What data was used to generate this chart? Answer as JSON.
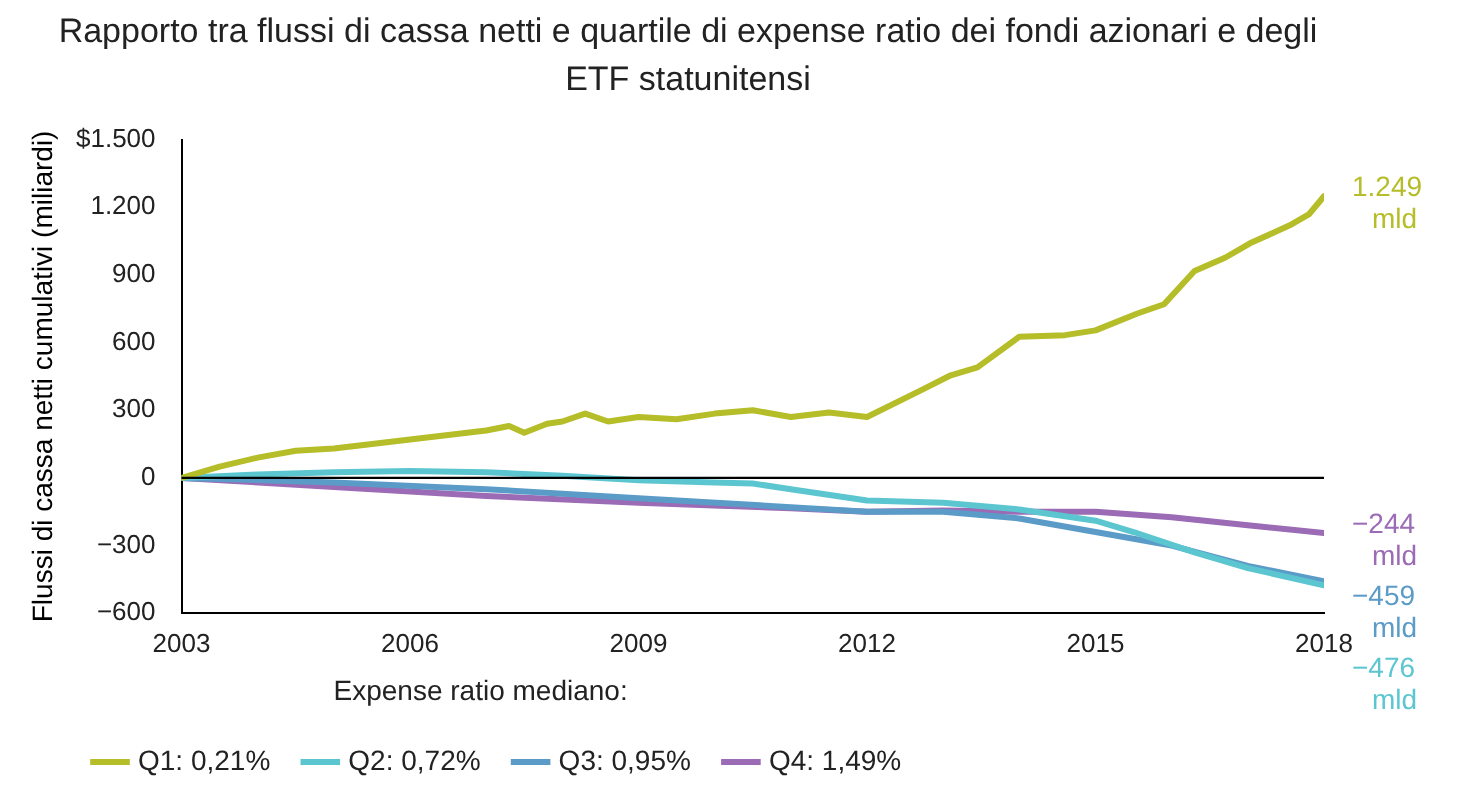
{
  "chart_data": {
    "type": "line",
    "title": "Rapporto tra flussi di cassa netti e quartile di expense ratio dei fondi azionari e degli ETF statunitensi",
    "ylabel": "Flussi di cassa netti cumulativi (miliardi)",
    "legend_title": "Expense ratio mediano:",
    "legend": "bottom",
    "grid": false,
    "marker": "none",
    "line_style": "solid",
    "xlim": [
      2003,
      2018
    ],
    "xticks": [
      2003,
      2006,
      2009,
      2012,
      2015,
      2018
    ],
    "ylim": [
      -600,
      1500
    ],
    "yticks": [
      {
        "value": -600,
        "label": "−600"
      },
      {
        "value": -300,
        "label": "−300"
      },
      0,
      300,
      600,
      900,
      {
        "value": 1200,
        "label": "1.200"
      },
      {
        "value": 1500,
        "label": "$1.500"
      }
    ],
    "ref_lines": [
      {
        "axis": "y",
        "value": 0,
        "color": "#000000"
      }
    ],
    "series": [
      {
        "name": "Q1: 0,21%",
        "color": "#b5bd28",
        "x": [
          2003,
          2003.5,
          2004,
          2004.5,
          2005,
          2005.5,
          2006,
          2006.5,
          2007,
          2007.3,
          2007.5,
          2007.8,
          2008,
          2008.3,
          2008.6,
          2009,
          2009.5,
          2010,
          2010.5,
          2011,
          2011.5,
          2012,
          2012.7,
          2013.1,
          2013.45,
          2014,
          2014.6,
          2015,
          2015.55,
          2015.9,
          2016.3,
          2016.7,
          2017.05,
          2017.35,
          2017.55,
          2017.8,
          2018
        ],
        "values": [
          0,
          50,
          90,
          120,
          130,
          150,
          170,
          190,
          210,
          230,
          200,
          240,
          250,
          285,
          250,
          270,
          260,
          285,
          300,
          270,
          290,
          270,
          387,
          455,
          490,
          626,
          633,
          654,
          729,
          770,
          917,
          976,
          1044,
          1089,
          1120,
          1168,
          1249
        ],
        "value_labels": [
          null,
          null,
          null,
          null,
          null,
          null,
          null,
          null,
          null,
          null,
          null,
          null,
          null,
          null,
          null,
          null,
          null,
          null,
          null,
          null,
          null,
          null,
          null,
          null,
          null,
          null,
          null,
          null,
          null,
          null,
          null,
          null,
          null,
          null,
          null,
          null,
          "1.249 mld"
        ]
      },
      {
        "name": "Q2: 0,72%",
        "color": "#5cc6d0",
        "x": [
          2003,
          2004,
          2005,
          2006,
          2007,
          2008,
          2009,
          2010,
          2010.5,
          2011,
          2012,
          2013,
          2014,
          2015,
          2015.5,
          2016.3,
          2017,
          2018
        ],
        "values": [
          0,
          15,
          25,
          30,
          25,
          10,
          -10,
          -20,
          -25,
          -50,
          -100,
          -110,
          -140,
          -190,
          -240,
          -330,
          -400,
          -476
        ],
        "value_labels": [
          null,
          null,
          null,
          null,
          null,
          null,
          null,
          null,
          null,
          null,
          null,
          null,
          null,
          null,
          null,
          null,
          null,
          "−476 mld"
        ]
      },
      {
        "name": "Q3: 0,95%",
        "color": "#5b9bc8",
        "x": [
          2003,
          2005,
          2007,
          2009,
          2011,
          2012,
          2013,
          2014,
          2015,
          2016,
          2017,
          2018
        ],
        "values": [
          0,
          -20,
          -50,
          -90,
          -130,
          -150,
          -150,
          -180,
          -240,
          -300,
          -390,
          -459
        ],
        "value_labels": [
          null,
          null,
          null,
          null,
          null,
          null,
          null,
          null,
          null,
          null,
          null,
          "−459 mld"
        ]
      },
      {
        "name": "Q4: 1,49%",
        "color": "#9b6bb5",
        "x": [
          2003,
          2005,
          2007,
          2009,
          2011,
          2012,
          2013,
          2014,
          2015,
          2016,
          2017,
          2018
        ],
        "values": [
          0,
          -40,
          -80,
          -110,
          -135,
          -150,
          -145,
          -150,
          -150,
          -175,
          -210,
          -244
        ],
        "value_labels": [
          null,
          null,
          null,
          null,
          null,
          null,
          null,
          null,
          null,
          null,
          null,
          "−244 mld"
        ]
      }
    ]
  }
}
